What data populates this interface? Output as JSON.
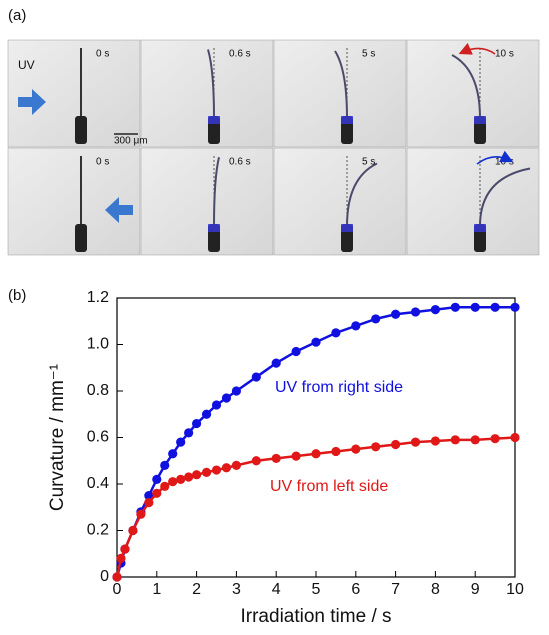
{
  "panel_a": {
    "label": "(a)",
    "uv_label": "UV",
    "scale_bar": "300 μm",
    "time_labels": [
      [
        "0 s",
        "0.6 s",
        "5 s",
        "10 s"
      ],
      [
        "0 s",
        "0.6 s",
        "5 s",
        "10 s"
      ]
    ]
  },
  "panel_b": {
    "label": "(b)"
  },
  "chart_data": {
    "type": "line",
    "x_label": "Irradiation time / s",
    "y_label": "Curvature / mm⁻¹",
    "x": [
      0,
      0.1,
      0.2,
      0.4,
      0.6,
      0.8,
      1.0,
      1.2,
      1.4,
      1.6,
      1.8,
      2.0,
      2.25,
      2.5,
      2.75,
      3,
      3.5,
      4,
      4.5,
      5,
      5.5,
      6,
      6.5,
      7,
      7.5,
      8,
      8.5,
      9,
      9.5,
      10
    ],
    "series": [
      {
        "name": "UV from right side",
        "color": "#1010e0",
        "values": [
          0,
          0.06,
          0.12,
          0.2,
          0.28,
          0.35,
          0.42,
          0.48,
          0.53,
          0.58,
          0.62,
          0.66,
          0.7,
          0.74,
          0.77,
          0.8,
          0.86,
          0.92,
          0.97,
          1.01,
          1.05,
          1.08,
          1.11,
          1.13,
          1.14,
          1.15,
          1.16,
          1.16,
          1.16,
          1.16
        ]
      },
      {
        "name": "UV from left side",
        "color": "#e01818",
        "values": [
          0,
          0.08,
          0.12,
          0.2,
          0.27,
          0.32,
          0.36,
          0.39,
          0.41,
          0.42,
          0.43,
          0.44,
          0.45,
          0.46,
          0.47,
          0.48,
          0.5,
          0.51,
          0.52,
          0.53,
          0.54,
          0.55,
          0.56,
          0.57,
          0.58,
          0.585,
          0.59,
          0.59,
          0.595,
          0.6
        ]
      }
    ],
    "xlim": [
      0,
      10
    ],
    "xticks": [
      0,
      1,
      2,
      3,
      4,
      5,
      6,
      7,
      8,
      9,
      10
    ],
    "ylim": [
      0,
      1.2
    ],
    "yticks": [
      0,
      0.2,
      0.4,
      0.6,
      0.8,
      {
        "value": 1,
        "label": "1.0"
      },
      1.2
    ]
  }
}
